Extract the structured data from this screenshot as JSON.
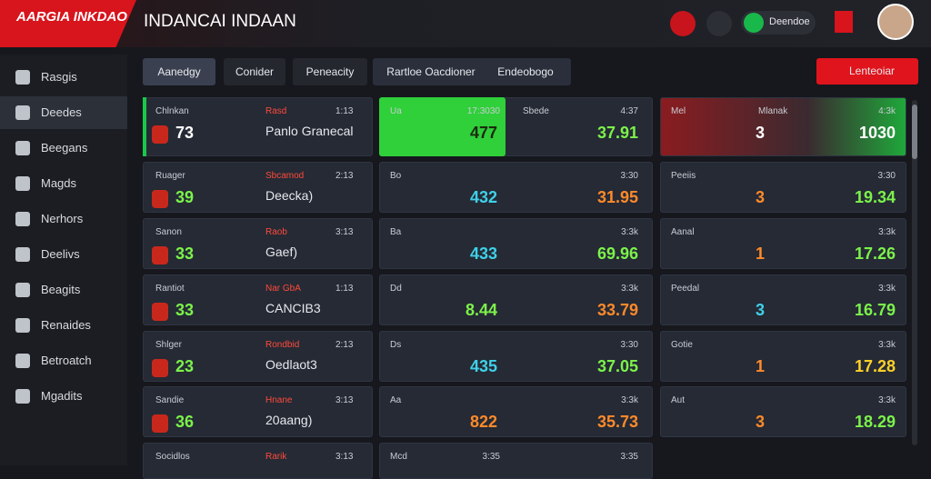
{
  "header": {
    "logo": "AARGIA INKDAO",
    "title": "INDANCAI INDAAN",
    "user_pill": "Deendoe"
  },
  "sidebar": [
    "Rasgis",
    "Deedes",
    "Beegans",
    "Magds",
    "Nerhors",
    "Deelivs",
    "Beagits",
    "Renaides",
    "Betroatch",
    "Mgadits"
  ],
  "tabs": [
    "Aanedgy",
    "Conider",
    "Peneacity",
    "Rartloe Oacdioner",
    "Endeobogo"
  ],
  "action_button": "Lenteoiar",
  "cards": {
    "left": [
      {
        "label": "Chlnkan",
        "tag": "Rasd",
        "odds": "1:13",
        "score": "73",
        "name": "Panlo Granecal",
        "color": "#ffffff"
      },
      {
        "label": "Ruager",
        "tag": "Sbcamod",
        "odds": "2:13",
        "score": "39",
        "name": "Deecka)",
        "color": "#7cf24a"
      },
      {
        "label": "Sanon",
        "tag": "Raob",
        "odds": "3:13",
        "score": "33",
        "name": "Gaef)",
        "color": "#7cf24a"
      },
      {
        "label": "Rantiot",
        "tag": "Nar GbA",
        "odds": "1:13",
        "score": "33",
        "name": "CANCIB3",
        "color": "#7cf24a"
      },
      {
        "label": "Shlger",
        "tag": "Rondbid",
        "odds": "2:13",
        "score": "23",
        "name": "Oedlaot3",
        "color": "#7cf24a"
      },
      {
        "label": "Sandie",
        "tag": "Hnane",
        "odds": "3:13",
        "score": "36",
        "name": "20aang)",
        "color": "#7cf24a"
      },
      {
        "label": "Socidlos",
        "tag": "Rarik",
        "odds": "3:13",
        "score": "",
        "name": "",
        "color": "#7cf24a"
      }
    ],
    "middle": [
      {
        "label": "Ua",
        "odds": "17:3030",
        "value": "477",
        "label2": "Sbede",
        "odds2": "4:37",
        "value2": "37.91",
        "color": "#1c2a10",
        "color2": "#7cf24a"
      },
      {
        "label": "Bo",
        "odds": "",
        "value": "432",
        "label2": "",
        "odds2": "3:30",
        "value2": "31.95",
        "color": "#3fd0e8",
        "color2": "#ff8a2a"
      },
      {
        "label": "Ba",
        "odds": "",
        "value": "433",
        "label2": "",
        "odds2": "3:3k",
        "value2": "69.96",
        "color": "#3fd0e8",
        "color2": "#7cf24a"
      },
      {
        "label": "Dd",
        "odds": "",
        "value": "8.44",
        "label2": "",
        "odds2": "3:3k",
        "value2": "33.79",
        "color": "#7cf24a",
        "color2": "#ff8a2a"
      },
      {
        "label": "Ds",
        "odds": "",
        "value": "435",
        "label2": "",
        "odds2": "3:30",
        "value2": "37.05",
        "color": "#3fd0e8",
        "color2": "#7cf24a"
      },
      {
        "label": "Aa",
        "odds": "",
        "value": "822",
        "label2": "",
        "odds2": "3:3k",
        "value2": "35.73",
        "color": "#ff8a2a",
        "color2": "#ff8a2a"
      },
      {
        "label": "Mcd",
        "odds": "3:35",
        "value": "",
        "label2": "",
        "odds2": "3:35",
        "value2": "",
        "color": "#3fd0e8",
        "color2": "#7cf24a"
      }
    ],
    "right": [
      {
        "label": "Mel",
        "mid": "Mlanak",
        "count": "3",
        "value": "1030",
        "odds": "4:3k",
        "color": "#ffffff",
        "vcolor": "#ffffff"
      },
      {
        "label": "Peeiis",
        "mid": "",
        "count": "3",
        "value": "19.34",
        "odds": "3:30",
        "color": "#ff8a2a",
        "vcolor": "#7cf24a"
      },
      {
        "label": "Aanal",
        "mid": "",
        "count": "1",
        "value": "17.26",
        "odds": "3:3k",
        "color": "#ff8a2a",
        "vcolor": "#7cf24a"
      },
      {
        "label": "Peedal",
        "mid": "",
        "count": "3",
        "value": "16.79",
        "odds": "3:3k",
        "color": "#3fd0e8",
        "vcolor": "#7cf24a"
      },
      {
        "label": "Gotie",
        "mid": "",
        "count": "1",
        "value": "17.28",
        "odds": "3:3k",
        "color": "#ff8a2a",
        "vcolor": "#ffd02a"
      },
      {
        "label": "Aut",
        "mid": "",
        "count": "3",
        "value": "18.29",
        "odds": "3:3k",
        "color": "#ff8a2a",
        "vcolor": "#7cf24a"
      }
    ]
  }
}
